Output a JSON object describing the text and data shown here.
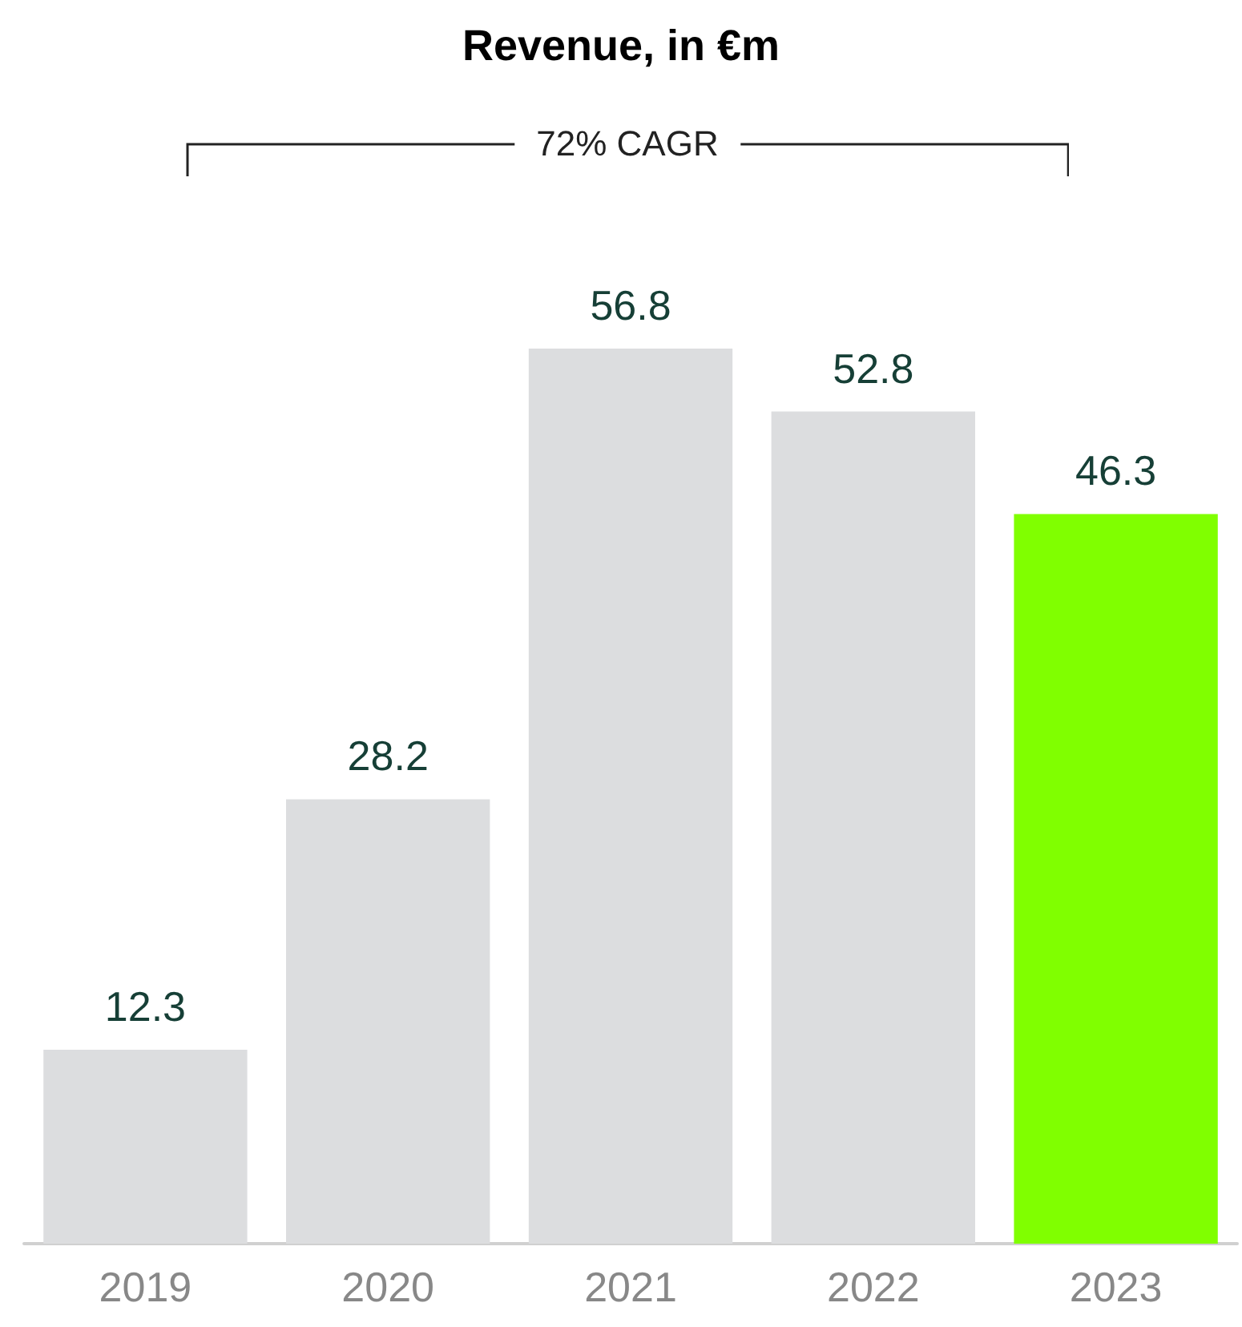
{
  "chart_data": {
    "type": "bar",
    "title": "Revenue, in €m",
    "categories": [
      "2019",
      "2020",
      "2021",
      "2022",
      "2023"
    ],
    "values": [
      12.3,
      28.2,
      56.8,
      52.8,
      46.3
    ],
    "colors": [
      "#dcdddf",
      "#dcdddf",
      "#dcdddf",
      "#dcdddf",
      "#80ff00"
    ],
    "data_labels": true,
    "annotations": [
      "72% CAGR"
    ]
  }
}
